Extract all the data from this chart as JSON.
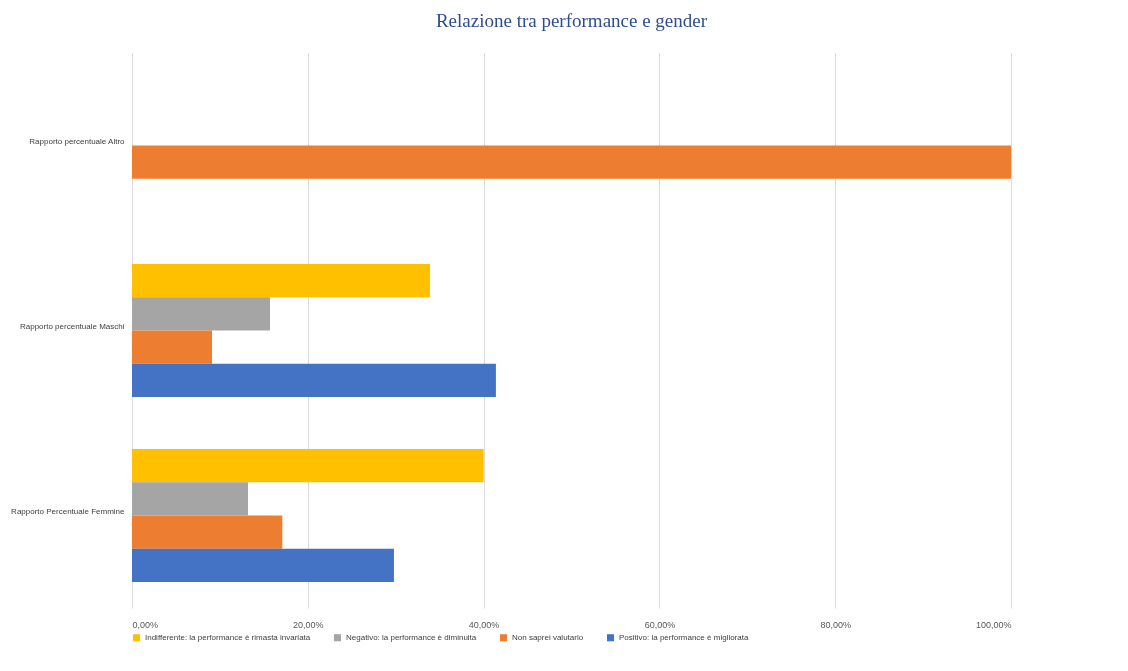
{
  "chart_data": {
    "type": "bar",
    "orientation": "horizontal",
    "title": "Relazione tra performance e gender",
    "categories": [
      "Rapporto percentuale Altro",
      "Rapporto percentuale Maschi",
      "Rapporto Percentuale Femmine"
    ],
    "series": [
      {
        "name": "Indifferente: la performance è rimasta invariata",
        "color": "#ffc000",
        "values": [
          null,
          33.9,
          40.0
        ]
      },
      {
        "name": "Negativo: la performance è diminuita",
        "color": "#a5a5a5",
        "values": [
          null,
          15.7,
          13.2
        ]
      },
      {
        "name": "Non saprei valutarlo",
        "color": "#ed7d31",
        "values": [
          100,
          9.1,
          17.1
        ]
      },
      {
        "name": "Positivo: la performance è migliorata",
        "color": "#4472c4",
        "values": [
          null,
          41.4,
          29.8
        ]
      }
    ],
    "xlim": [
      0,
      100
    ],
    "xticks": [
      {
        "value": 0,
        "label": "0,00%"
      },
      {
        "value": 20,
        "label": "20,00%"
      },
      {
        "value": 40,
        "label": "40,00%"
      },
      {
        "value": 60,
        "label": "60,00%"
      },
      {
        "value": 80,
        "label": "80,00%"
      },
      {
        "value": 100,
        "label": "100,00%"
      }
    ],
    "grid": "x",
    "legend": "bottom"
  }
}
